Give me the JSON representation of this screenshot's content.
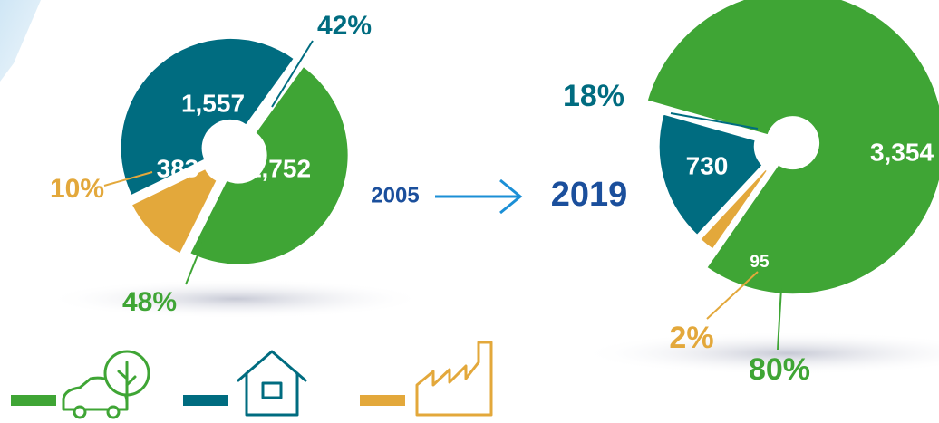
{
  "chart_data": [
    {
      "type": "donut",
      "title": "2005",
      "values": [
        1557,
        1752,
        383
      ],
      "value_labels": [
        "1,557",
        "1,752",
        "383"
      ],
      "percent_labels": [
        "42%",
        "48%",
        "10%"
      ],
      "colors": [
        "#006c80",
        "#3fa535",
        "#e3a83b"
      ]
    },
    {
      "type": "donut",
      "title": "2019",
      "values": [
        730,
        3354,
        95
      ],
      "value_labels": [
        "730",
        "3,354",
        "95"
      ],
      "percent_labels": [
        "18%",
        "80%",
        "2%"
      ],
      "colors": [
        "#006c80",
        "#3fa535",
        "#e3a83b"
      ]
    }
  ]
}
